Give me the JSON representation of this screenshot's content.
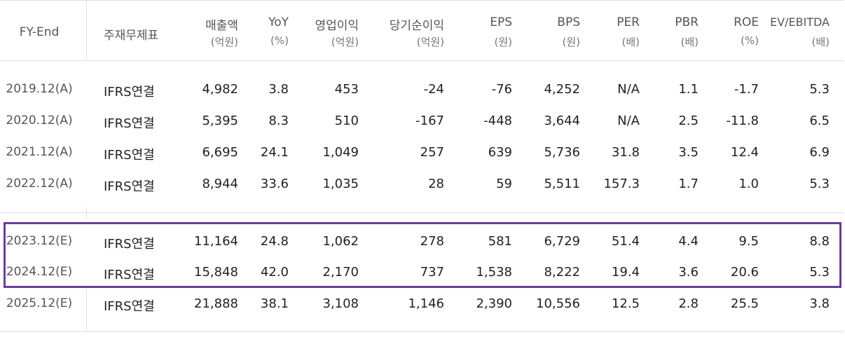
{
  "table": {
    "headers": [
      {
        "l1": "FY-End",
        "l2": ""
      },
      {
        "l1": "주재무제표",
        "l2": ""
      },
      {
        "l1": "매출액",
        "l2": "(억원)"
      },
      {
        "l1": "YoY",
        "l2": "(%)"
      },
      {
        "l1": "영업이익",
        "l2": "(억원)"
      },
      {
        "l1": "당기순이익",
        "l2": "(억원)"
      },
      {
        "l1": "EPS",
        "l2": "(원)"
      },
      {
        "l1": "BPS",
        "l2": "(원)"
      },
      {
        "l1": "PER",
        "l2": "(배)"
      },
      {
        "l1": "PBR",
        "l2": "(배)"
      },
      {
        "l1": "ROE",
        "l2": "(%)"
      },
      {
        "l1": "EV/EBITDA",
        "l2": "(배)"
      }
    ],
    "rows": [
      [
        "2019.12(A)",
        "IFRS연결",
        "4,982",
        "3.8",
        "453",
        "-24",
        "-76",
        "4,252",
        "N/A",
        "1.1",
        "-1.7",
        "5.3"
      ],
      [
        "2020.12(A)",
        "IFRS연결",
        "5,395",
        "8.3",
        "510",
        "-167",
        "-448",
        "3,644",
        "N/A",
        "2.5",
        "-11.8",
        "6.5"
      ],
      [
        "2021.12(A)",
        "IFRS연결",
        "6,695",
        "24.1",
        "1,049",
        "257",
        "639",
        "5,736",
        "31.8",
        "3.5",
        "12.4",
        "6.9"
      ],
      [
        "2022.12(A)",
        "IFRS연결",
        "8,944",
        "33.6",
        "1,035",
        "28",
        "59",
        "5,511",
        "157.3",
        "1.7",
        "1.0",
        "5.3"
      ],
      [
        "2023.12(E)",
        "IFRS연결",
        "11,164",
        "24.8",
        "1,062",
        "278",
        "581",
        "6,729",
        "51.4",
        "4.4",
        "9.5",
        "8.8"
      ],
      [
        "2024.12(E)",
        "IFRS연결",
        "15,848",
        "42.0",
        "2,170",
        "737",
        "1,538",
        "8,222",
        "19.4",
        "3.6",
        "20.6",
        "5.3"
      ],
      [
        "2025.12(E)",
        "IFRS연결",
        "21,888",
        "38.1",
        "3,108",
        "1,146",
        "2,390",
        "10,556",
        "12.5",
        "2.8",
        "25.5",
        "3.8"
      ]
    ],
    "highlight_color": "#6a3d9a"
  }
}
